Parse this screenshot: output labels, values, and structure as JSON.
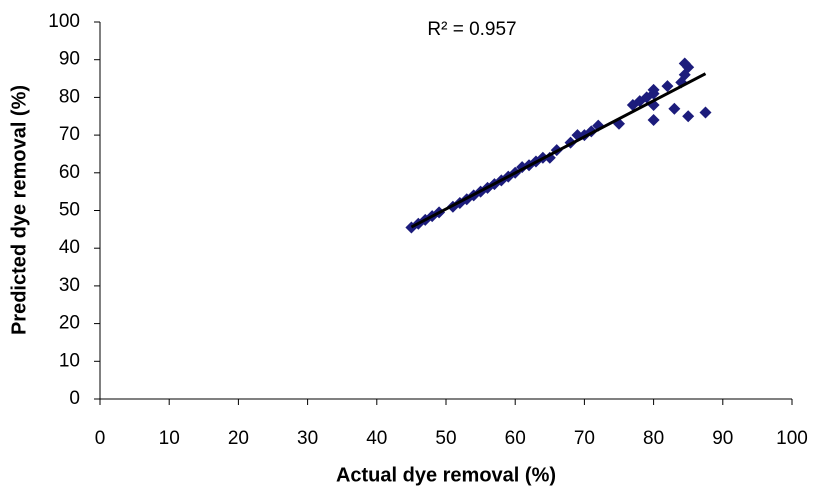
{
  "chart_data": {
    "type": "scatter",
    "annotation": "R² = 0.957",
    "x_label": "Actual dye removal (%)",
    "y_label": "Predicted dye removal (%)",
    "xlim": [
      0,
      100
    ],
    "xticks": [
      0,
      10,
      20,
      30,
      40,
      50,
      60,
      70,
      80,
      90,
      100
    ],
    "ylim": [
      0,
      100
    ],
    "yticks": [
      0,
      10,
      20,
      30,
      40,
      50,
      60,
      70,
      80,
      90,
      100
    ],
    "series": [
      {
        "color": "#1c1c7c",
        "x": [
          45,
          46,
          47,
          48,
          49,
          51,
          52,
          53,
          54,
          55,
          56,
          57,
          58,
          59,
          60,
          61,
          62,
          63,
          64,
          65,
          66,
          68,
          69,
          70,
          71,
          72,
          75,
          77,
          78,
          79,
          80,
          80,
          80,
          80,
          82,
          83,
          84,
          84.5,
          85,
          84.5,
          85,
          87.5
        ],
        "values": [
          45.5,
          46.5,
          47.5,
          48.5,
          49.5,
          51,
          52,
          53,
          54,
          55,
          56,
          57,
          58,
          59,
          60,
          61.5,
          62,
          63,
          64,
          64,
          66,
          68,
          70,
          70,
          71,
          72.5,
          73,
          78,
          79,
          80,
          81,
          82,
          74,
          78,
          83,
          77,
          84,
          86,
          88,
          89,
          75,
          76
        ]
      }
    ],
    "trendline": {
      "color": "#000000",
      "x": [
        45,
        87.5
      ],
      "values": [
        45.6,
        86.3
      ]
    }
  }
}
